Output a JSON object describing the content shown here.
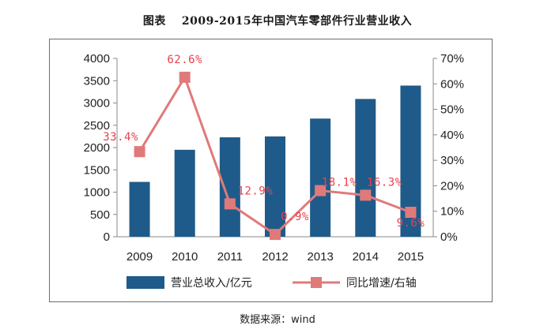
{
  "figure": {
    "caption_label": "图表",
    "caption_title": "2009-2015年中国汽车零部件行业营业收入",
    "source": "数据来源：wind"
  },
  "chart_data": {
    "type": "bar",
    "title": "2009-2015年中国汽车零部件行业营业收入",
    "categories": [
      "2009",
      "2010",
      "2011",
      "2012",
      "2013",
      "2014",
      "2015"
    ],
    "series": [
      {
        "name": "营业总收入/亿元",
        "type": "bar",
        "axis": "left",
        "color": "#1f5b8a",
        "values": [
          1230,
          1950,
          2230,
          2250,
          2650,
          3090,
          3390
        ]
      },
      {
        "name": "同比增速/右轴",
        "type": "line",
        "axis": "right",
        "color": "#e07a7a",
        "values": [
          33.4,
          62.6,
          12.9,
          0.9,
          18.1,
          16.3,
          9.6
        ],
        "labels": [
          "33.4%",
          "62.6%",
          "12.9%",
          "0.9%",
          "18.1%",
          "16.3%",
          "9.6%"
        ]
      }
    ],
    "label_color": "#e8424e",
    "y_left": {
      "min": 0,
      "max": 4000,
      "step": 500,
      "ticks": [
        "0",
        "500",
        "1000",
        "1500",
        "2000",
        "2500",
        "3000",
        "3500",
        "4000"
      ]
    },
    "y_right": {
      "min": 0,
      "max": 70,
      "step": 10,
      "ticks": [
        "0%",
        "10%",
        "20%",
        "30%",
        "40%",
        "50%",
        "60%",
        "70%"
      ]
    },
    "legend_position": "bottom",
    "grid": false
  }
}
